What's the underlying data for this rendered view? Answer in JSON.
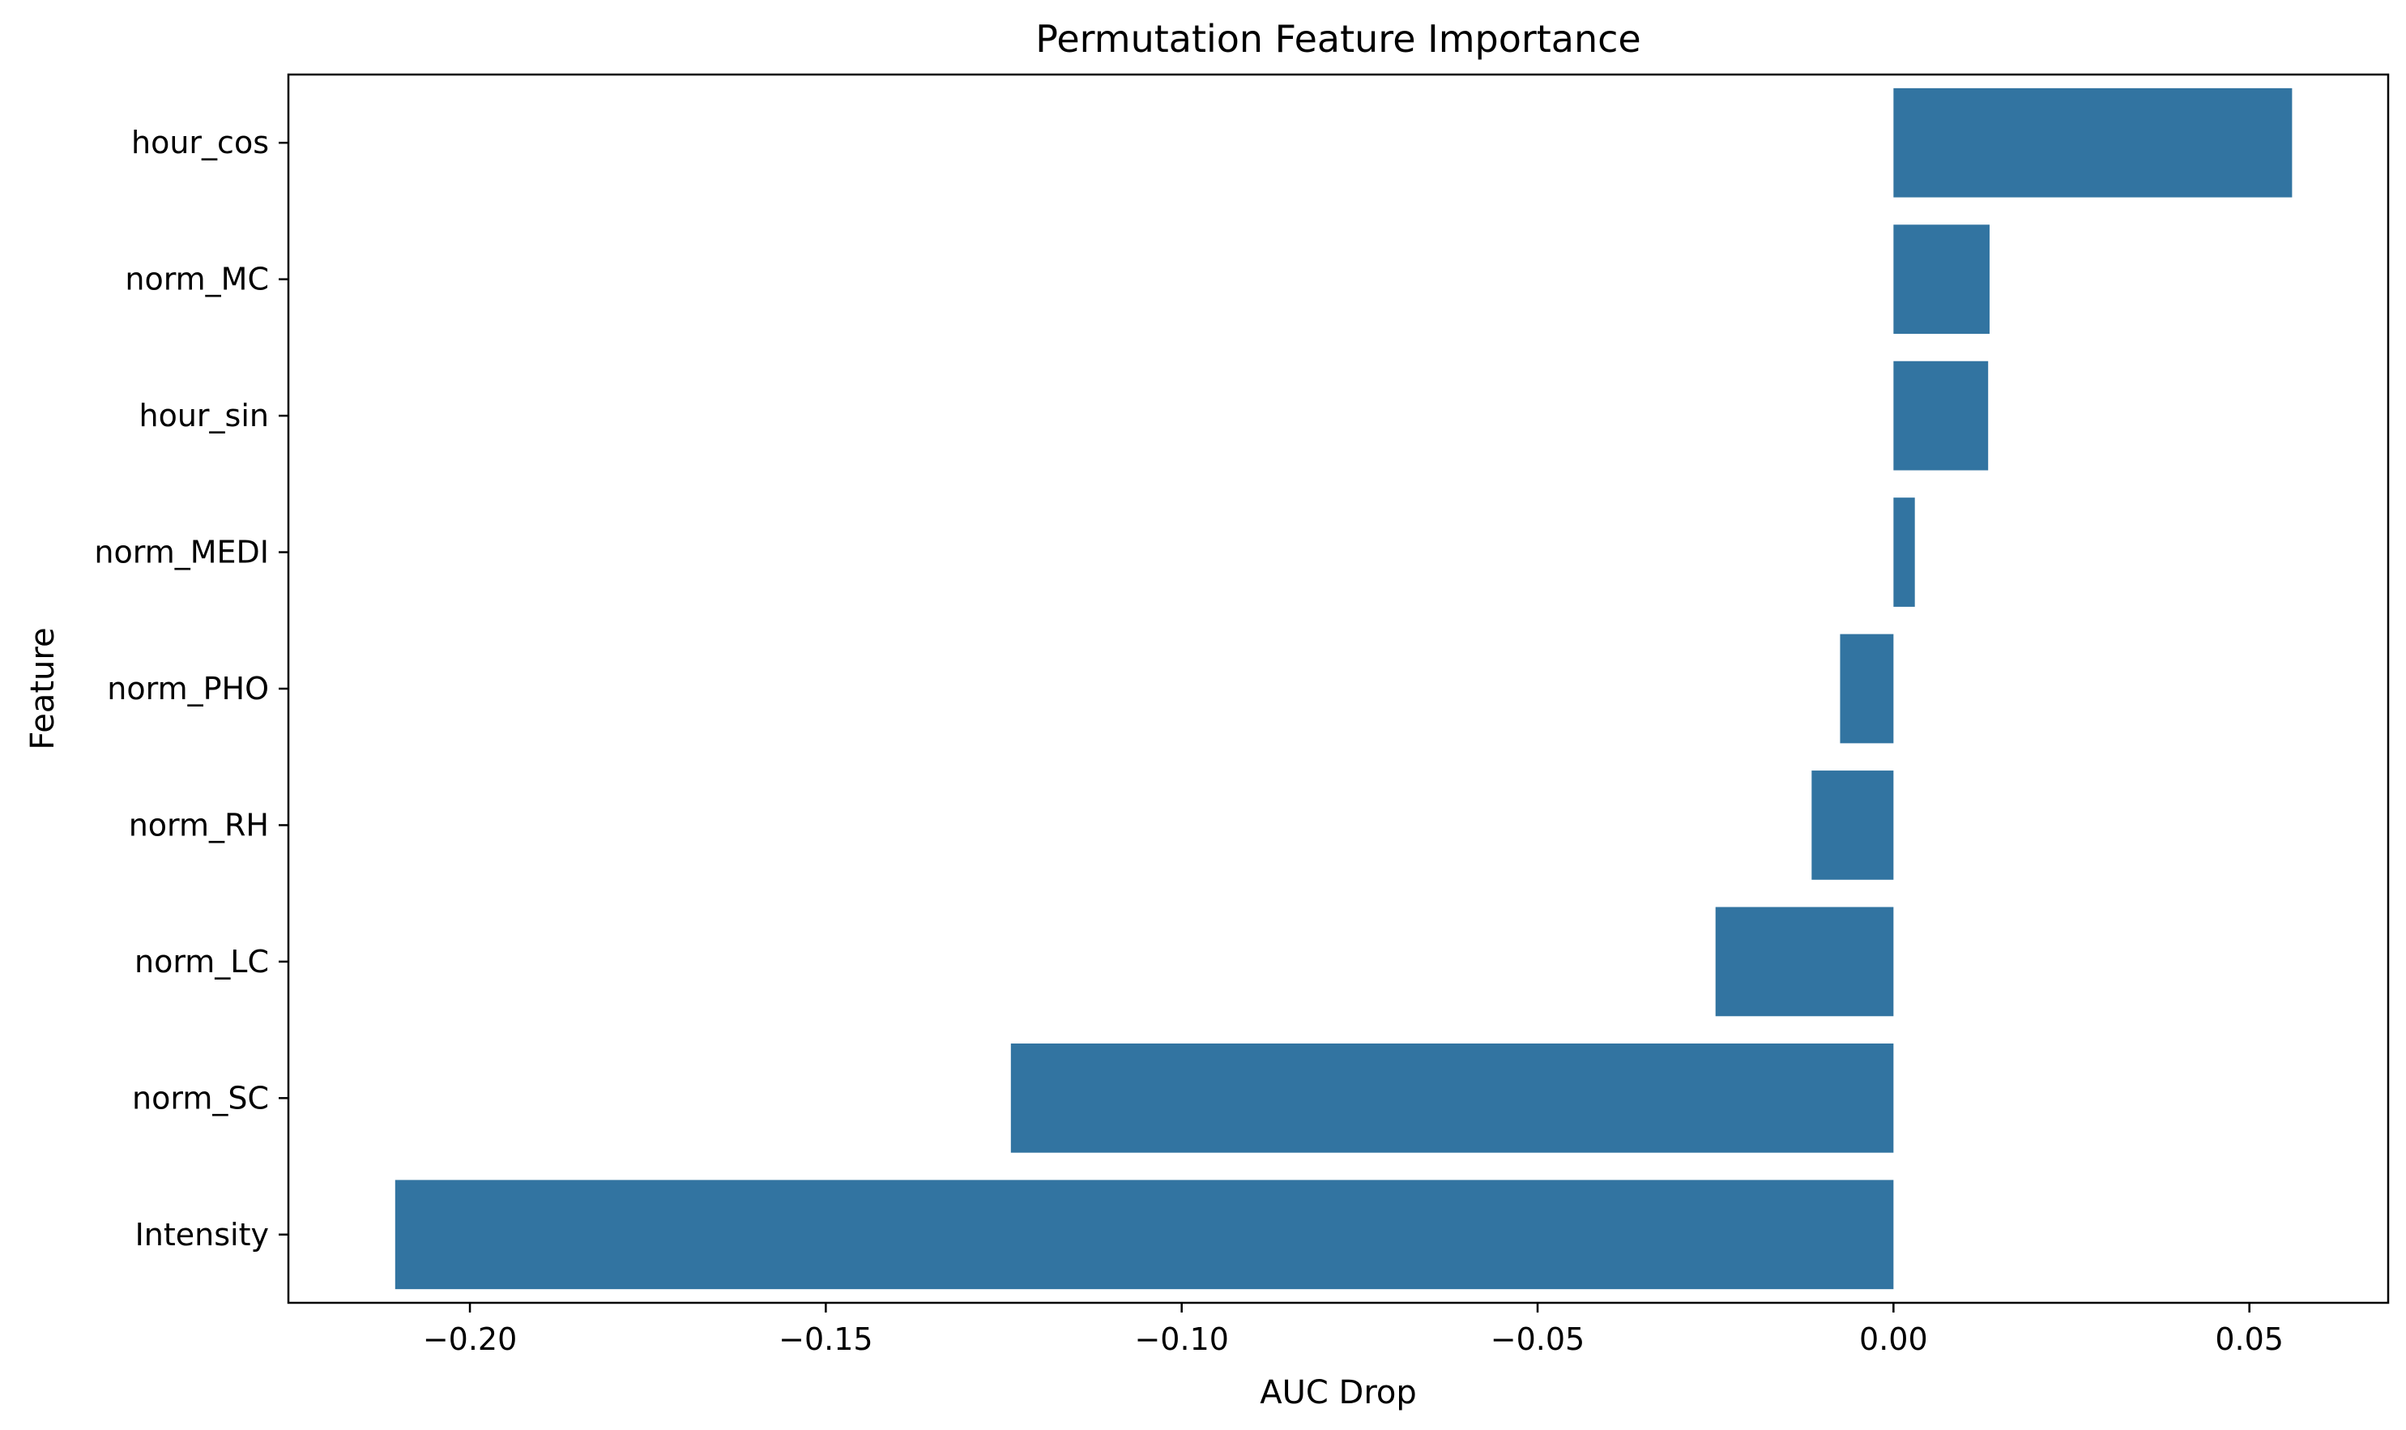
{
  "chart_data": {
    "type": "bar",
    "orientation": "horizontal",
    "title": "Permutation Feature Importance",
    "xlabel": "AUC Drop",
    "ylabel": "Feature",
    "categories": [
      "hour_cos",
      "norm_MC",
      "hour_sin",
      "norm_MEDI",
      "norm_PHO",
      "norm_RH",
      "norm_LC",
      "norm_SC",
      "Intensity"
    ],
    "values": [
      0.056,
      0.0135,
      0.0133,
      0.003,
      -0.0075,
      -0.0115,
      -0.025,
      -0.124,
      -0.2105
    ],
    "xlim": [
      -0.2255,
      0.0695
    ],
    "xticks": [
      -0.2,
      -0.15,
      -0.1,
      -0.05,
      0.0,
      0.05
    ],
    "xtick_labels": [
      "−0.20",
      "−0.15",
      "−0.10",
      "−0.05",
      "0.00",
      "0.05"
    ],
    "grid": false,
    "bar_color": "#3274a1"
  }
}
